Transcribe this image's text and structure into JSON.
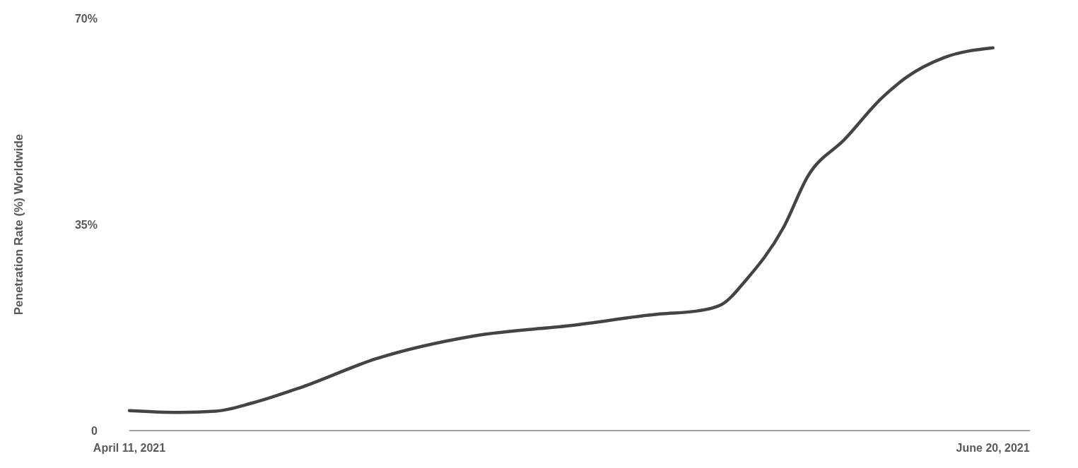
{
  "chart_data": {
    "type": "line",
    "ylabel": "Penetration Rate (%) Worldwide",
    "x": [
      "2021-04-11",
      "2021-04-15",
      "2021-04-18",
      "2021-04-21",
      "2021-04-25",
      "2021-05-01",
      "2021-05-09",
      "2021-05-17",
      "2021-05-24",
      "2021-05-27",
      "2021-05-29",
      "2021-05-31",
      "2021-06-03",
      "2021-06-05",
      "2021-06-08",
      "2021-06-11",
      "2021-06-13",
      "2021-06-16",
      "2021-06-20"
    ],
    "series": [
      {
        "color": "#444444",
        "values": [
          3.4,
          3.1,
          3.3,
          4.7,
          7.4,
          12.2,
          16.1,
          17.9,
          19.8,
          20.3,
          21.4,
          25.6,
          34.4,
          43.2,
          49.5,
          56.5,
          60.0,
          63.3,
          65.0
        ]
      }
    ],
    "xlim": [
      "2021-04-11",
      "2021-06-23"
    ],
    "xticks": [
      {
        "value": "2021-04-11",
        "label": "April 11, 2021"
      },
      {
        "value": "2021-06-20",
        "label": "June 20, 2021"
      }
    ],
    "ylim": [
      0,
      70
    ],
    "yticks": [
      {
        "value": 0,
        "label": "0"
      },
      {
        "value": 35,
        "label": "35%"
      },
      {
        "value": 70,
        "label": "70%"
      }
    ],
    "grid": false,
    "marker": "none",
    "line_style": "solid"
  }
}
